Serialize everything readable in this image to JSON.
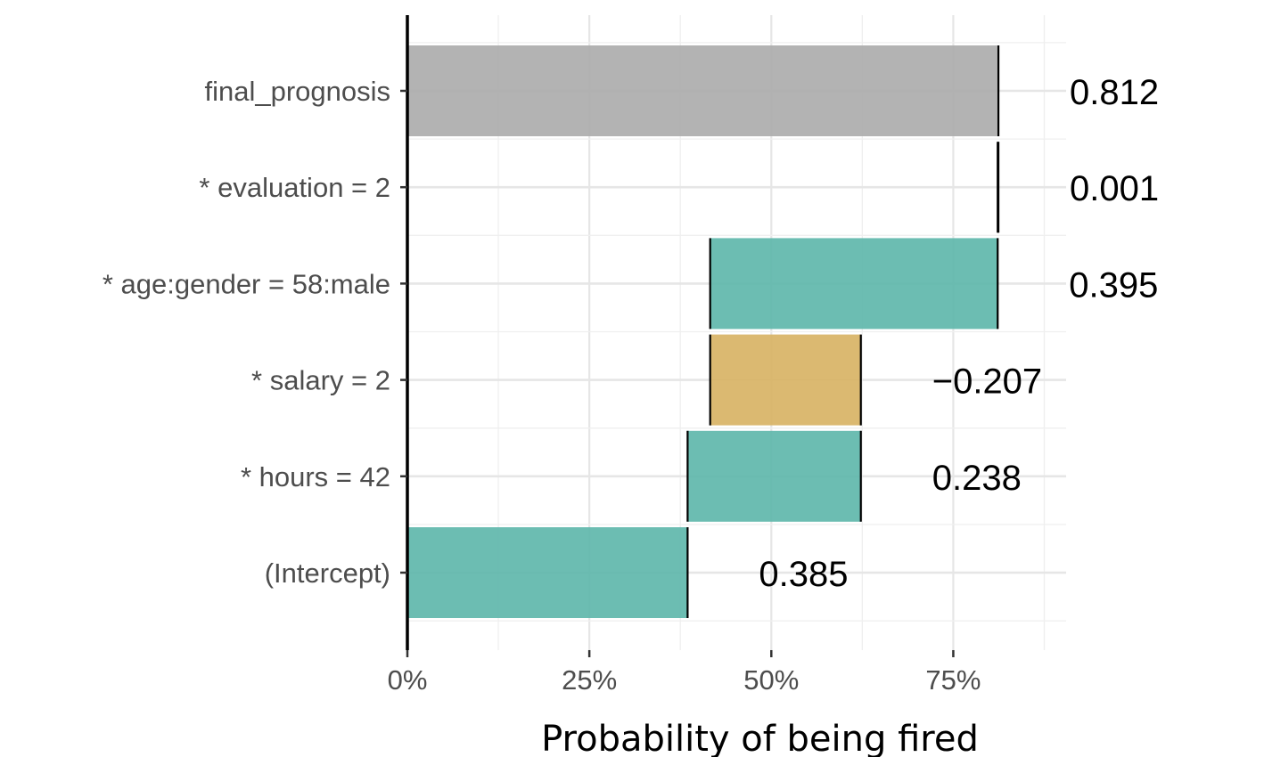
{
  "chart_data": {
    "type": "bar",
    "subtype": "waterfall / break-down",
    "orientation": "horizontal",
    "categories": [
      "final_prognosis",
      "* evaluation = 2",
      "* age:gender = 58:male",
      "* salary = 2",
      "* hours = 42",
      "(Intercept)"
    ],
    "bars": [
      {
        "category": "final_prognosis",
        "start": 0.0,
        "end": 0.812,
        "label": "0.812",
        "color": "#adadad"
      },
      {
        "category": "* evaluation = 2",
        "start": 0.811,
        "end": 0.812,
        "label": "0.001",
        "color": "#5fb7ab"
      },
      {
        "category": "* age:gender = 58:male",
        "start": 0.416,
        "end": 0.811,
        "label": "0.395",
        "color": "#5fb7ab"
      },
      {
        "category": "* salary = 2",
        "start": 0.416,
        "end": 0.623,
        "label": "−0.207",
        "color": "#d8b365"
      },
      {
        "category": "* hours = 42",
        "start": 0.385,
        "end": 0.623,
        "label": "0.238",
        "color": "#5fb7ab"
      },
      {
        "category": "(Intercept)",
        "start": 0.0,
        "end": 0.385,
        "label": "0.385",
        "color": "#5fb7ab"
      }
    ],
    "x_ticks": [
      {
        "value": 0.0,
        "label": "0%"
      },
      {
        "value": 0.25,
        "label": "25%"
      },
      {
        "value": 0.5,
        "label": "50%"
      },
      {
        "value": 0.75,
        "label": "75%"
      }
    ],
    "xlim": [
      0.0,
      0.905
    ],
    "xlabel": "Probability of being fired",
    "grid": true,
    "colors": {
      "positive": "#5fb7ab",
      "negative": "#d8b365",
      "prediction": "#adadad"
    }
  }
}
